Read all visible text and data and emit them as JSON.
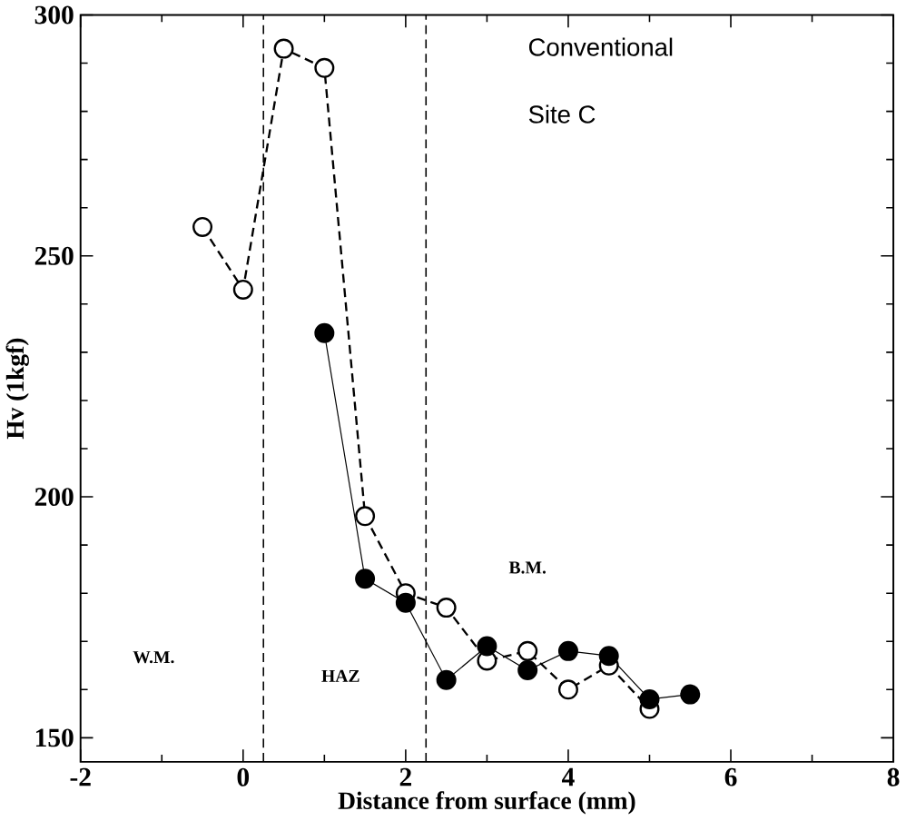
{
  "chart_data": {
    "type": "line",
    "xlabel": "Distance from surface (mm)",
    "ylabel": "Hv (1kgf)",
    "xlim": [
      -2,
      8
    ],
    "ylim": [
      145,
      300
    ],
    "xticks": [
      -2,
      0,
      2,
      4,
      6,
      8
    ],
    "yticks": [
      150,
      200,
      250,
      300
    ],
    "marker": "circle",
    "grid": false,
    "series": [
      {
        "color": "#000000",
        "line_style": "dashed",
        "x": [
          -0.5,
          0,
          0.5,
          1,
          1.5,
          2,
          2.5,
          3,
          3.5,
          4,
          4.5,
          5
        ],
        "values": [
          256,
          243,
          293,
          289,
          196,
          180,
          177,
          166,
          168,
          160,
          165,
          156
        ]
      },
      {
        "color": "#000000",
        "line_style": "solid",
        "x": [
          1,
          1.5,
          2,
          2.5,
          3,
          3.5,
          4,
          4.5,
          5,
          5.5
        ],
        "values": [
          234,
          183,
          178,
          162,
          169,
          164,
          168,
          167,
          158,
          159
        ]
      }
    ],
    "ref_lines": [
      {
        "axis": "x",
        "value": 0.25,
        "line_style": "dashed"
      },
      {
        "axis": "x",
        "value": 2.25,
        "line_style": "dashed"
      }
    ],
    "annotations": [
      "Conventional",
      "Site C",
      "W.M.",
      "HAZ",
      "B.M."
    ]
  }
}
